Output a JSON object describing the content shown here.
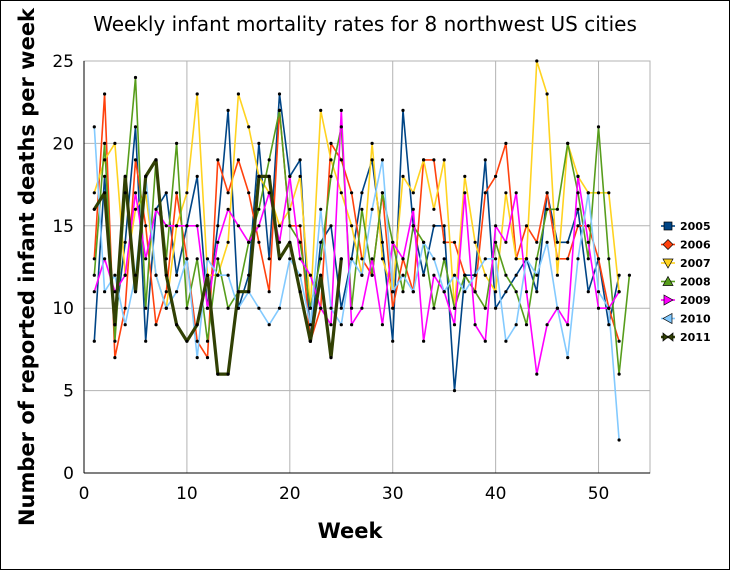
{
  "chart_data": {
    "type": "line",
    "title": "Weekly infant mortality rates for 8 northwest US cities",
    "xlabel": "Week",
    "ylabel": "Number of reported infant deaths per week",
    "xlim": [
      0,
      55
    ],
    "ylim": [
      0,
      25
    ],
    "x_ticks": [
      "0",
      "10",
      "20",
      "30",
      "40",
      "50"
    ],
    "y_ticks": [
      "0",
      "5",
      "10",
      "15",
      "20",
      "25"
    ],
    "grid": true,
    "legend_position": "right",
    "series": [
      {
        "name": "2005",
        "color": "#004586",
        "width": 1.6,
        "x": [
          1,
          2,
          3,
          4,
          5,
          6,
          7,
          8,
          9,
          10,
          11,
          12,
          13,
          14,
          15,
          16,
          17,
          18,
          19,
          20,
          21,
          22,
          23,
          24,
          25,
          26,
          27,
          28,
          29,
          30,
          31,
          32,
          33,
          34,
          35,
          36,
          37,
          38,
          39,
          40,
          41,
          42,
          43,
          44,
          45,
          46,
          47,
          48,
          49,
          50,
          51,
          52
        ],
        "y": [
          8,
          18,
          9,
          14,
          21,
          8,
          16,
          17,
          12,
          15,
          18,
          10,
          15,
          22,
          10,
          12,
          20,
          13,
          23,
          18,
          19,
          8,
          14,
          15,
          10,
          13,
          17,
          19,
          14,
          8,
          22,
          15,
          12,
          15,
          15,
          5,
          12,
          12,
          19,
          10,
          11,
          12,
          13,
          11,
          17,
          14,
          14,
          16,
          11,
          13,
          9,
          12
        ]
      },
      {
        "name": "2006",
        "color": "#ff420e",
        "width": 1.6,
        "x": [
          1,
          2,
          3,
          4,
          5,
          6,
          7,
          8,
          9,
          10,
          11,
          12,
          13,
          14,
          15,
          16,
          17,
          18,
          19,
          20,
          21,
          22,
          23,
          24,
          25,
          26,
          27,
          28,
          29,
          30,
          31,
          32,
          33,
          34,
          35,
          36,
          37,
          38,
          39,
          40,
          41,
          42,
          43,
          44,
          45,
          46,
          47,
          48,
          49,
          50,
          51,
          52
        ],
        "y": [
          13,
          23,
          7,
          10,
          19,
          15,
          9,
          11,
          17,
          13,
          8,
          7,
          19,
          17,
          19,
          17,
          14,
          11,
          22,
          15,
          15,
          8,
          10,
          20,
          19,
          17,
          13,
          12,
          17,
          10,
          13,
          11,
          19,
          19,
          14,
          14,
          12,
          11,
          17,
          18,
          20,
          13,
          15,
          14,
          17,
          13,
          13,
          15,
          15,
          13,
          10,
          8
        ]
      },
      {
        "name": "2007",
        "color": "#ffd320",
        "width": 1.6,
        "x": [
          1,
          2,
          3,
          4,
          5,
          6,
          7,
          8,
          9,
          10,
          11,
          12,
          13,
          14,
          15,
          16,
          17,
          18,
          19,
          20,
          21,
          22,
          23,
          24,
          25,
          26,
          27,
          28,
          29,
          30,
          31,
          32,
          33,
          34,
          35,
          36,
          37,
          38,
          39,
          40,
          41,
          42,
          43,
          44,
          45,
          46,
          47,
          48,
          49,
          50,
          51,
          52
        ],
        "y": [
          17,
          19,
          20,
          12,
          16,
          17,
          12,
          10,
          15,
          17,
          23,
          12,
          12,
          14,
          23,
          21,
          18,
          17,
          15,
          16,
          18,
          10,
          22,
          19,
          17,
          15,
          12,
          20,
          13,
          11,
          18,
          17,
          19,
          16,
          19,
          10,
          18,
          14,
          12,
          11,
          17,
          13,
          13,
          25,
          23,
          12,
          20,
          18,
          17,
          17,
          17,
          11
        ]
      },
      {
        "name": "2008",
        "color": "#579d1c",
        "width": 1.6,
        "x": [
          1,
          2,
          3,
          4,
          5,
          6,
          7,
          8,
          9,
          10,
          11,
          12,
          13,
          14,
          15,
          16,
          17,
          18,
          19,
          20,
          21,
          22,
          23,
          24,
          25,
          26,
          27,
          28,
          29,
          30,
          31,
          32,
          33,
          34,
          35,
          36,
          37,
          38,
          39,
          40,
          41,
          42,
          43,
          44,
          45,
          46,
          47,
          48,
          49,
          50,
          51,
          52,
          53
        ],
        "y": [
          12,
          20,
          8,
          17,
          24,
          10,
          19,
          13,
          20,
          10,
          13,
          8,
          13,
          10,
          11,
          14,
          16,
          19,
          22,
          15,
          14,
          10,
          13,
          18,
          21,
          10,
          16,
          12,
          17,
          14,
          11,
          15,
          14,
          10,
          13,
          10,
          12,
          11,
          10,
          14,
          12,
          11,
          9,
          13,
          16,
          16,
          20,
          17,
          13,
          21,
          13,
          6,
          12
        ]
      },
      {
        "name": "2009",
        "color": "#ff00ff",
        "width": 1.6,
        "x": [
          1,
          2,
          3,
          4,
          5,
          6,
          7,
          8,
          9,
          10,
          11,
          12,
          13,
          14,
          15,
          16,
          17,
          18,
          19,
          20,
          21,
          22,
          23,
          24,
          25,
          26,
          27,
          28,
          29,
          30,
          31,
          32,
          33,
          34,
          35,
          36,
          37,
          38,
          39,
          40,
          41,
          42,
          43,
          44,
          45,
          46,
          47,
          48,
          49,
          50,
          51,
          52
        ],
        "y": [
          11,
          13,
          11,
          12,
          17,
          13,
          16,
          15,
          15,
          15,
          15,
          10,
          14,
          16,
          15,
          14,
          15,
          17,
          14,
          18,
          13,
          12,
          10,
          9,
          22,
          9,
          10,
          13,
          9,
          14,
          13,
          16,
          8,
          12,
          11,
          9,
          17,
          9,
          8,
          15,
          14,
          17,
          11,
          6,
          9,
          10,
          9,
          18,
          14,
          10,
          10,
          11
        ]
      },
      {
        "name": "2010",
        "color": "#83caff",
        "width": 1.6,
        "x": [
          1,
          2,
          3,
          4,
          5,
          6,
          7,
          8,
          9,
          10,
          11,
          12,
          13,
          14,
          15,
          16,
          17,
          18,
          19,
          20,
          21,
          22,
          23,
          24,
          25,
          26,
          27,
          28,
          29,
          30,
          31,
          32,
          33,
          34,
          35,
          36,
          37,
          38,
          39,
          40,
          41,
          42,
          43,
          44,
          45,
          46,
          47,
          48,
          49,
          50,
          51,
          52
        ],
        "y": [
          21,
          11,
          12,
          9,
          12,
          18,
          12,
          10,
          11,
          13,
          7,
          13,
          12,
          12,
          10,
          11,
          10,
          9,
          10,
          13,
          12,
          9,
          16,
          10,
          9,
          13,
          12,
          16,
          19,
          11,
          12,
          11,
          14,
          13,
          11,
          12,
          11,
          12,
          13,
          13,
          8,
          9,
          13,
          12,
          14,
          10,
          7,
          13,
          17,
          11,
          10,
          2
        ]
      },
      {
        "name": "2011",
        "color": "#314004",
        "width": 3.2,
        "x": [
          1,
          2,
          3,
          4,
          5,
          6,
          7,
          8,
          9,
          10,
          11,
          12,
          13,
          14,
          15,
          16,
          17,
          18,
          19,
          20,
          21,
          22,
          23,
          24,
          25
        ],
        "y": [
          16,
          17,
          9,
          18,
          11,
          18,
          19,
          12,
          9,
          8,
          9,
          12,
          6,
          6,
          11,
          11,
          18,
          18,
          13,
          14,
          11,
          8,
          12,
          7,
          13
        ]
      }
    ]
  }
}
